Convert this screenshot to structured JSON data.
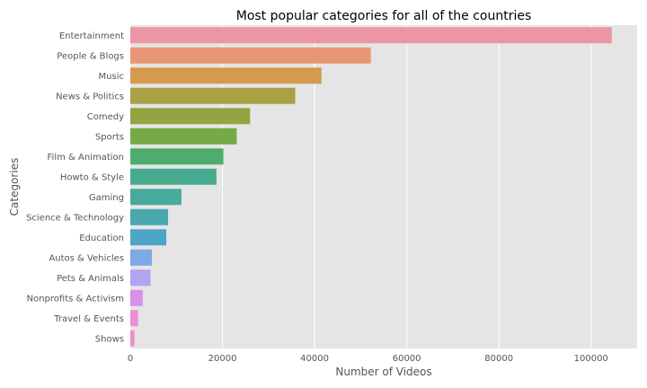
{
  "chart_data": {
    "type": "bar",
    "orientation": "horizontal",
    "title": "Most popular categories for all of the countries",
    "xlabel": "Number of Videos",
    "ylabel": "Categories",
    "xlim": [
      0,
      110000
    ],
    "xticks": [
      0,
      20000,
      40000,
      60000,
      80000,
      100000
    ],
    "xtick_labels": [
      "0",
      "20000",
      "40000",
      "60000",
      "80000",
      "100000"
    ],
    "grid": true,
    "categories": [
      "Entertainment",
      "People & Blogs",
      "Music",
      "News & Politics",
      "Comedy",
      "Sports",
      "Film & Animation",
      "Howto & Style",
      "Gaming",
      "Science & Technology",
      "Education",
      "Autos & Vehicles",
      "Pets & Animals",
      "Nonprofits & Activism",
      "Travel & Events",
      "Shows"
    ],
    "values": [
      104500,
      52200,
      41500,
      35800,
      26000,
      23100,
      20200,
      18700,
      11100,
      8200,
      7800,
      4700,
      4400,
      2700,
      1700,
      900
    ],
    "colors": [
      "#ec96a4",
      "#e99675",
      "#d59a4f",
      "#aaa044",
      "#94a440",
      "#75aa45",
      "#4ead6c",
      "#46ab8e",
      "#48aa9d",
      "#4aa8ae",
      "#4ea5c6",
      "#7fa8e6",
      "#b2a4f2",
      "#d890ec",
      "#e990d6",
      "#eb90c0"
    ]
  }
}
